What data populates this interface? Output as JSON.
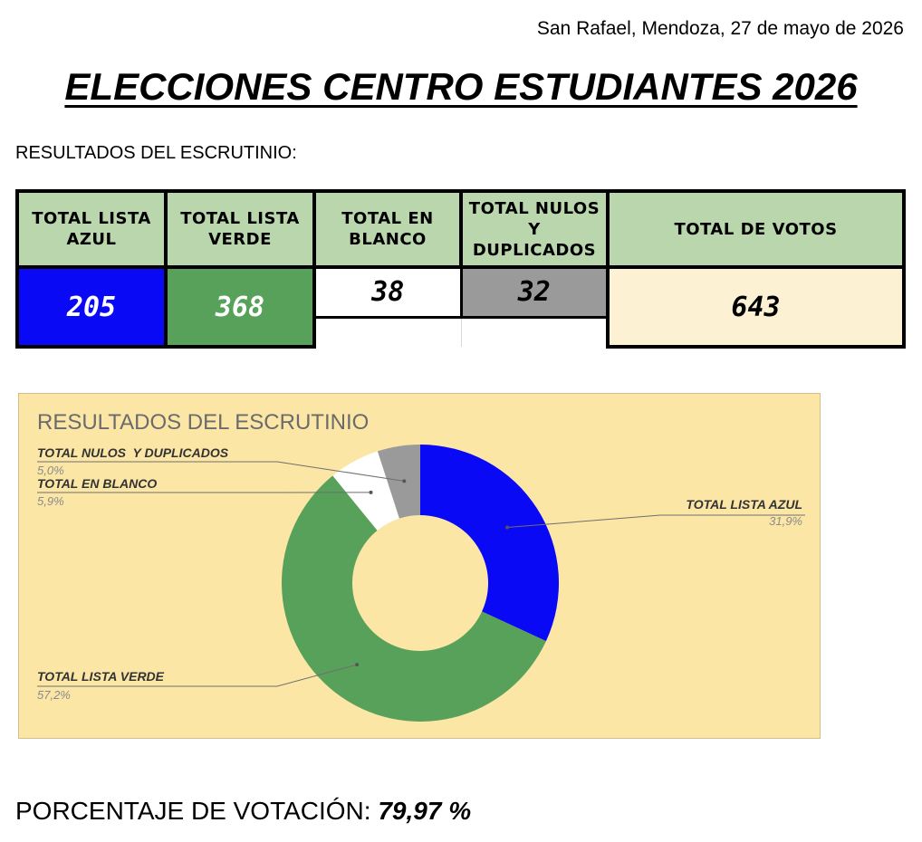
{
  "header": {
    "place_date": "San Rafael, Mendoza, 27 de mayo de 2026",
    "title": "ELECCIONES CENTRO ESTUDIANTES 2026",
    "subtitle": "RESULTADOS DEL ESCRUTINIO:"
  },
  "table": {
    "headers": {
      "azul": "TOTAL LISTA AZUL",
      "verde": "TOTAL LISTA VERDE",
      "blanco": "TOTAL EN BLANCO",
      "nulos": "TOTAL NULOS  Y DUPLICADOS",
      "total": "TOTAL DE VOTOS"
    },
    "values": {
      "azul": "205",
      "verde": "368",
      "blanco": "38",
      "nulos": "32",
      "total": "643"
    }
  },
  "chart_data": {
    "type": "pie",
    "variant": "donut",
    "title": "RESULTADOS DEL ESCRUTINIO",
    "start_angle_deg": 0,
    "direction": "clockwise",
    "slices": [
      {
        "name": "TOTAL LISTA AZUL",
        "value": 205,
        "percent_label": "31,9%",
        "color": "#0909f5"
      },
      {
        "name": "TOTAL LISTA VERDE",
        "value": 368,
        "percent_label": "57,2%",
        "color": "#58a15a"
      },
      {
        "name": "TOTAL EN BLANCO",
        "value": 38,
        "percent_label": "5,9%",
        "color": "#ffffff"
      },
      {
        "name": "TOTAL NULOS  Y DUPLICADOS",
        "value": 32,
        "percent_label": "5,0%",
        "color": "#9a9a9a"
      }
    ],
    "background_color": "#fbe6a6"
  },
  "footer": {
    "participation_label": "PORCENTAJE DE VOTACIÓN: ",
    "participation_value": "79,97 %"
  }
}
